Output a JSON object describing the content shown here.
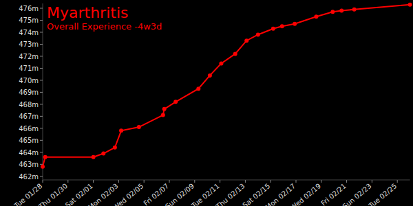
{
  "chart_data": {
    "type": "line",
    "title": "Myarthritis",
    "subtitle": "Overall Experience -4w3d",
    "x": [
      0,
      0.2,
      4.0,
      4.8,
      5.7,
      6.2,
      7.6,
      9.5,
      9.6,
      10.5,
      12.3,
      13.2,
      14.1,
      15.2,
      16.1,
      17.0,
      18.2,
      18.9,
      19.9,
      21.6,
      22.9,
      23.6,
      24.6,
      29.0
    ],
    "series": [
      {
        "name": "Overall Experience",
        "color": "#ff0000",
        "marker": "circle",
        "values": [
          462.8,
          463.6,
          463.6,
          463.9,
          464.4,
          465.8,
          466.1,
          467.1,
          467.6,
          468.2,
          469.3,
          470.4,
          471.4,
          472.2,
          473.3,
          473.8,
          474.3,
          474.5,
          474.7,
          475.3,
          475.7,
          475.8,
          475.9,
          476.3
        ]
      }
    ],
    "xlim": [
      0,
      29
    ],
    "xticks": [
      {
        "value": 0,
        "label": "Tue 01/28"
      },
      {
        "value": 2,
        "label": "Thu 01/30"
      },
      {
        "value": 4,
        "label": "Sat 02/01"
      },
      {
        "value": 6,
        "label": "Mon 02/03"
      },
      {
        "value": 8,
        "label": "Wed 02/05"
      },
      {
        "value": 10,
        "label": "Fri 02/07"
      },
      {
        "value": 12,
        "label": "Sun 02/09"
      },
      {
        "value": 14,
        "label": "Tue 02/11"
      },
      {
        "value": 16,
        "label": "Thu 02/13"
      },
      {
        "value": 18,
        "label": "Sat 02/15"
      },
      {
        "value": 20,
        "label": "Mon 02/17"
      },
      {
        "value": 22,
        "label": "Wed 02/19"
      },
      {
        "value": 24,
        "label": "Fri 02/21"
      },
      {
        "value": 26,
        "label": "Sun 02/23"
      },
      {
        "value": 28,
        "label": "Tue 02/25"
      }
    ],
    "ylim": [
      461.7,
      476.4
    ],
    "yticks": [
      {
        "value": 462,
        "label": "462m"
      },
      {
        "value": 463,
        "label": "463m"
      },
      {
        "value": 464,
        "label": "464m"
      },
      {
        "value": 465,
        "label": "465m"
      },
      {
        "value": 466,
        "label": "466m"
      },
      {
        "value": 467,
        "label": "467m"
      },
      {
        "value": 468,
        "label": "468m"
      },
      {
        "value": 469,
        "label": "469m"
      },
      {
        "value": 470,
        "label": "470m"
      },
      {
        "value": 471,
        "label": "471m"
      },
      {
        "value": 472,
        "label": "472m"
      },
      {
        "value": 473,
        "label": "473m"
      },
      {
        "value": 474,
        "label": "474m"
      },
      {
        "value": 475,
        "label": "475m"
      },
      {
        "value": 476,
        "label": "476m"
      }
    ],
    "grid": false
  }
}
